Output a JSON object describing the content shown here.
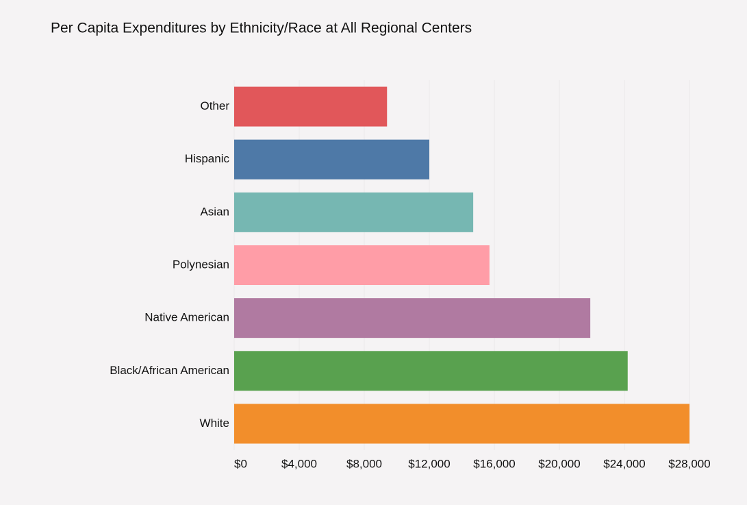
{
  "chart_data": {
    "type": "bar",
    "orientation": "horizontal",
    "title": "Per Capita Expenditures by Ethnicity/Race at All Regional Centers",
    "categories": [
      "Other",
      "Hispanic",
      "Asian",
      "Polynesian",
      "Native American",
      "Black/African American",
      "White"
    ],
    "values": [
      9400,
      12000,
      14700,
      15700,
      21900,
      24200,
      28000
    ],
    "colors": [
      "#e1575a",
      "#4e79a7",
      "#76b7b2",
      "#ff9da7",
      "#b07aa1",
      "#59a14f",
      "#f28e2b"
    ],
    "xlim": [
      0,
      28000
    ],
    "xticks": [
      {
        "value": 0,
        "label": "$0"
      },
      {
        "value": 4000,
        "label": "$4,000"
      },
      {
        "value": 8000,
        "label": "$8,000"
      },
      {
        "value": 12000,
        "label": "$12,000"
      },
      {
        "value": 16000,
        "label": "$16,000"
      },
      {
        "value": 20000,
        "label": "$20,000"
      },
      {
        "value": 24000,
        "label": "$24,000"
      },
      {
        "value": 28000,
        "label": "$28,000"
      }
    ],
    "grid": true
  }
}
